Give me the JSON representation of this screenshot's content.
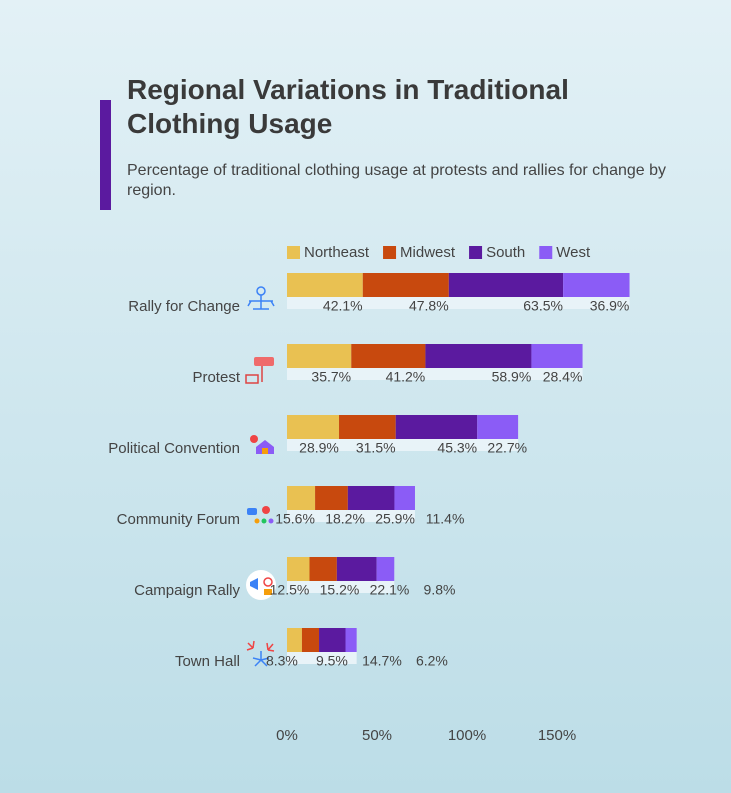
{
  "chart_data": {
    "type": "stacked-bar-horizontal",
    "title": "Regional Variations in Traditional Clothing Usage",
    "subtitle": "Percentage of traditional clothing usage at protests and rallies for change by region.",
    "categories": [
      "Rally for Change",
      "Protest",
      "Political Convention",
      "Community Forum",
      "Campaign Rally",
      "Town Hall"
    ],
    "series": [
      {
        "name": "Northeast",
        "color": "#e9c152",
        "values": [
          42.1,
          35.7,
          28.9,
          15.6,
          12.5,
          8.3
        ],
        "value_labels": [
          "42.1%",
          "35.7%",
          "28.9%",
          "15.6%",
          "12.5%",
          "8.3%"
        ]
      },
      {
        "name": "Midwest",
        "color": "#c8490e",
        "values": [
          47.8,
          41.2,
          31.5,
          18.2,
          15.2,
          9.5
        ],
        "value_labels": [
          "47.8%",
          "41.2%",
          "31.5%",
          "18.2%",
          "15.2%",
          "9.5%"
        ]
      },
      {
        "name": "South",
        "color": "#5b1a9f",
        "values": [
          63.5,
          58.9,
          45.3,
          25.9,
          22.1,
          14.7
        ],
        "value_labels": [
          "63.5%",
          "58.9%",
          "45.3%",
          "25.9%",
          "22.1%",
          "14.7%"
        ]
      },
      {
        "name": "West",
        "color": "#8b5cf6",
        "values": [
          36.9,
          28.4,
          22.7,
          11.4,
          9.8,
          6.2
        ],
        "value_labels": [
          "36.9%",
          "28.4%",
          "22.7%",
          "11.4%",
          "9.8%",
          "6.2%"
        ]
      }
    ],
    "xlim": [
      0,
      200
    ],
    "xticks": [
      {
        "value": 0,
        "label": "0%"
      },
      {
        "value": 50,
        "label": "50%"
      },
      {
        "value": 100,
        "label": "100%"
      },
      {
        "value": 150,
        "label": "150%"
      }
    ],
    "legend": "top"
  }
}
